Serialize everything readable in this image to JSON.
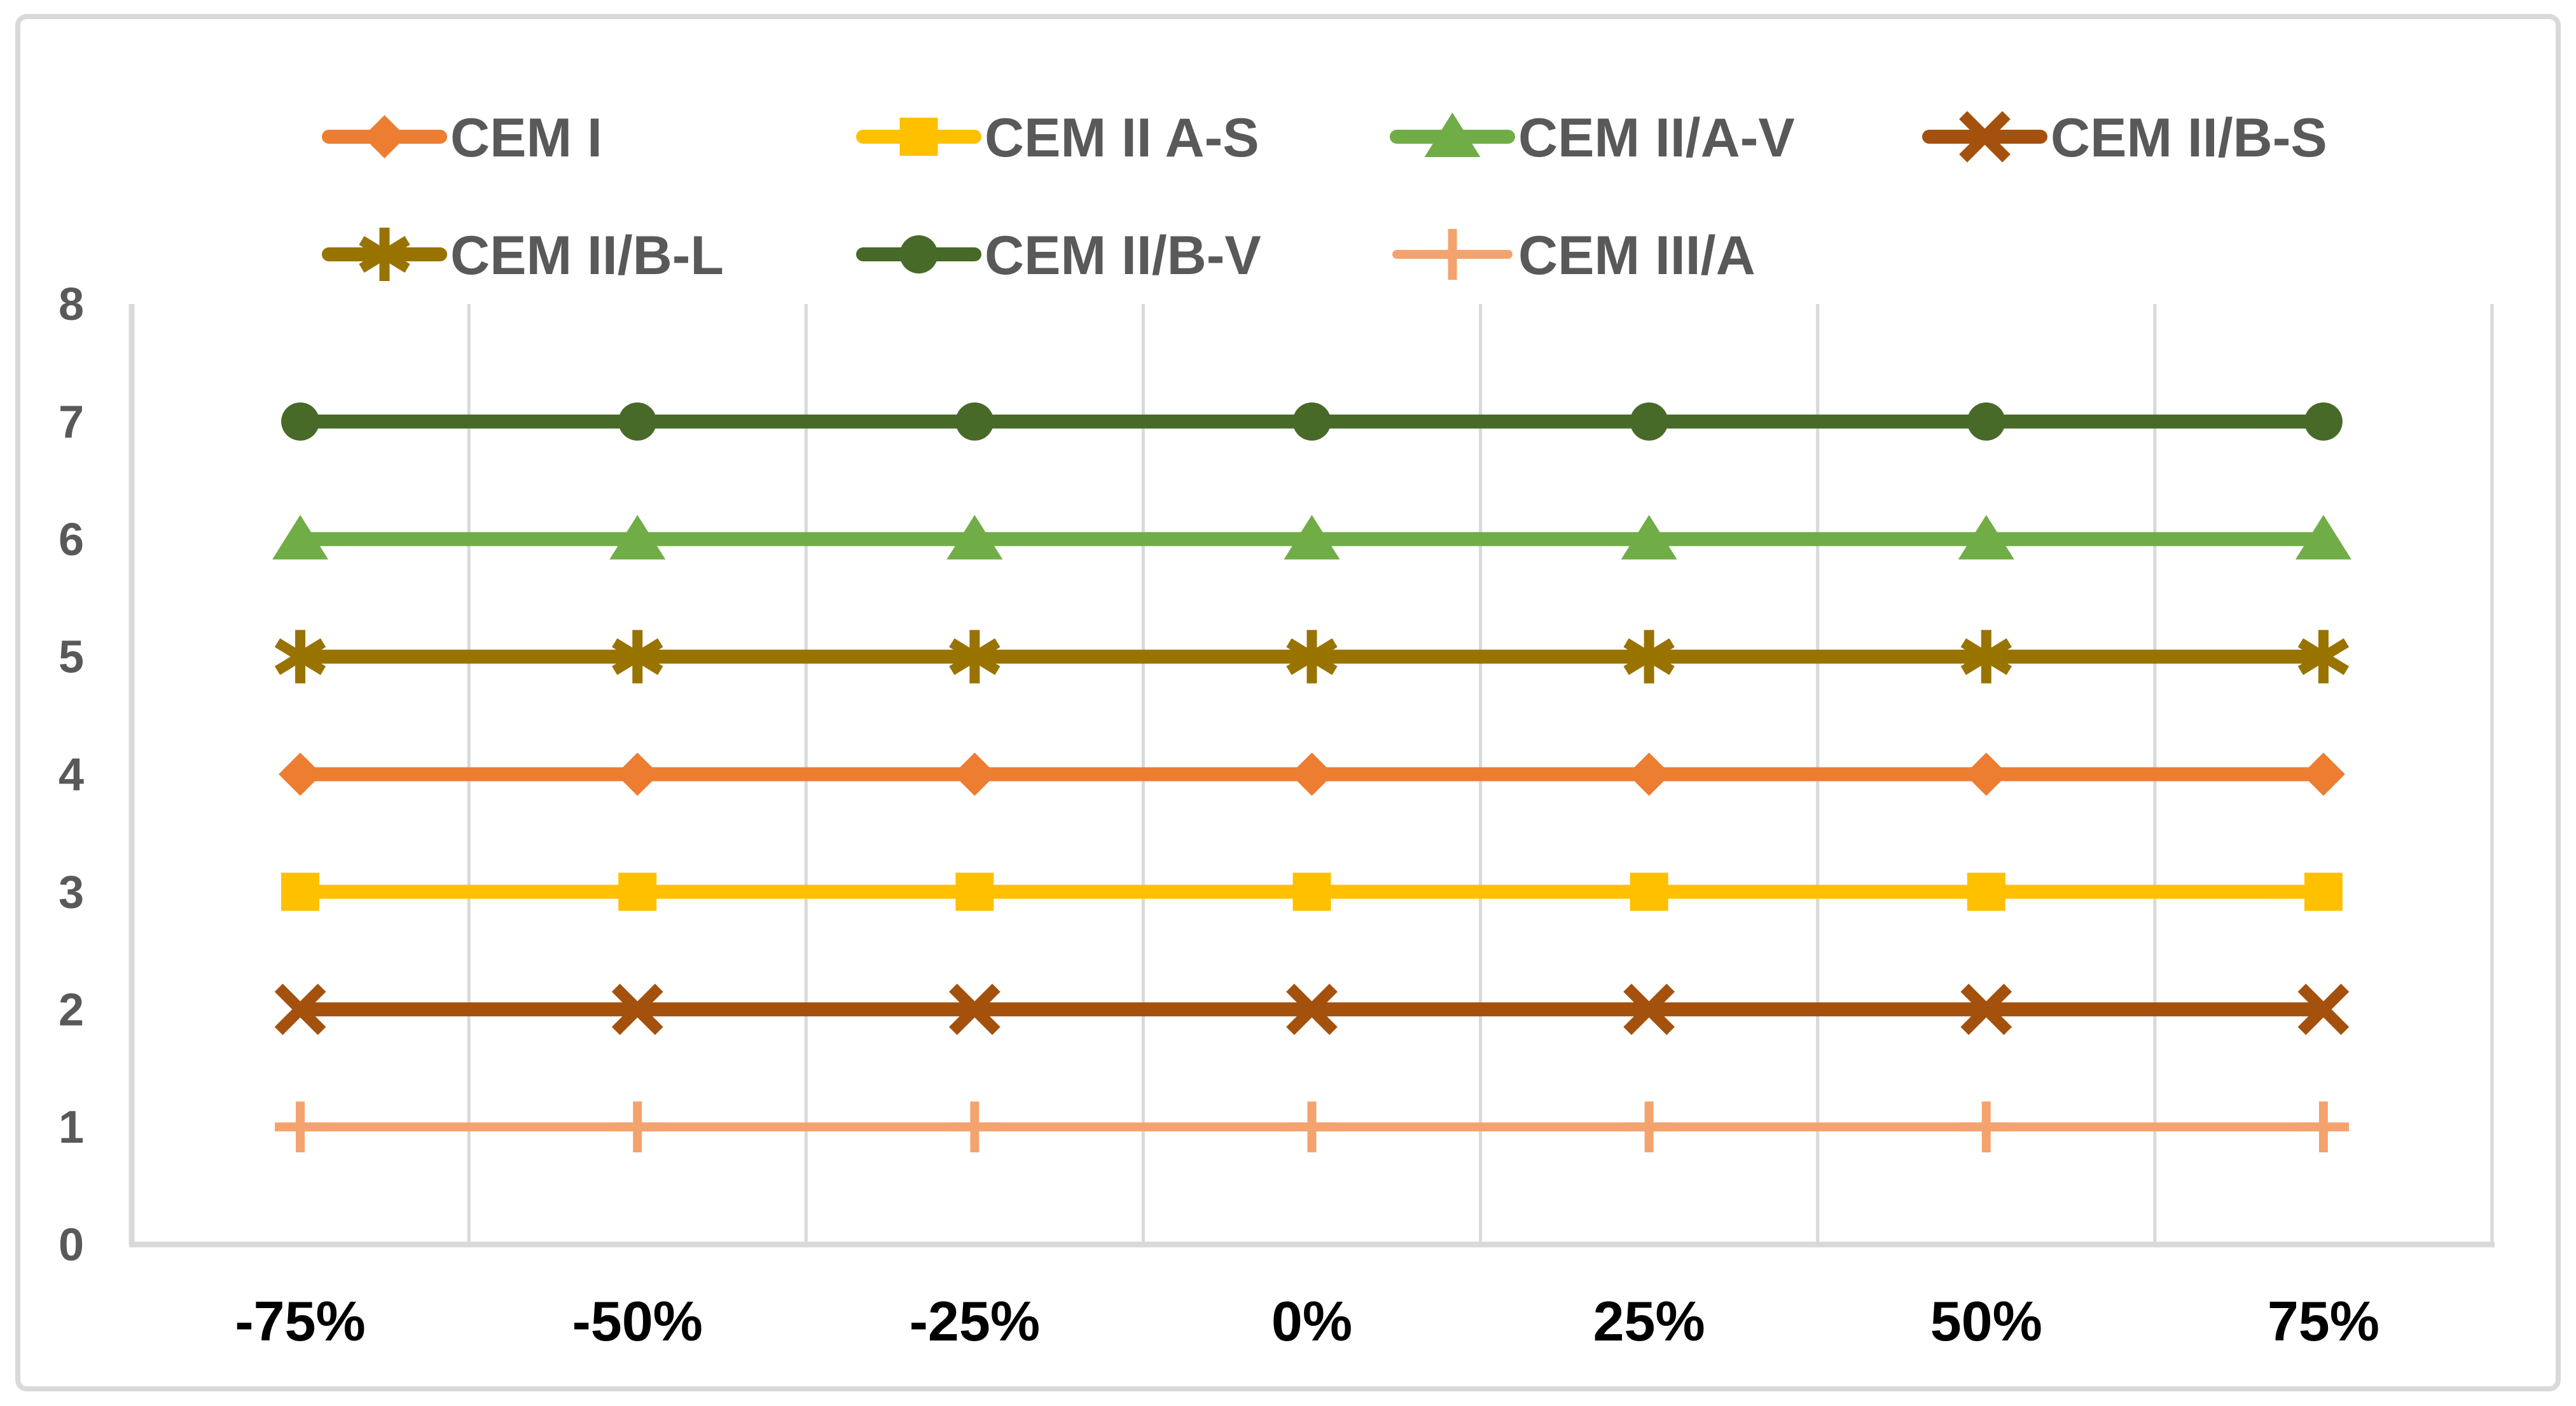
{
  "frame": {
    "background": "#FFFFFF",
    "border_color": "#D9D9D9"
  },
  "axes": {
    "gridline_color": "#D9D9D9",
    "axis_line_color": "#D9D9D9",
    "x": {
      "tick_labels": [
        "-75%",
        "-50%",
        "-25%",
        "0%",
        "25%",
        "50%",
        "75%"
      ],
      "label_color": "#000000"
    },
    "y": {
      "min": 0,
      "max": 8,
      "tick_labels": [
        "0",
        "1",
        "2",
        "3",
        "4",
        "5",
        "6",
        "7",
        "8"
      ],
      "label_color": "#595959"
    }
  },
  "legend": {
    "text_color": "#595959",
    "rows": [
      [
        "CEM I",
        "CEM II A-S",
        "CEM II/A-V",
        "CEM II/B-S"
      ],
      [
        "CEM II/B-L",
        "CEM II/B-V",
        "CEM III/A"
      ]
    ]
  },
  "chart_data": {
    "type": "line",
    "title": "",
    "xlabel": "",
    "ylabel": "",
    "categories": [
      "-75%",
      "-50%",
      "-25%",
      "0%",
      "25%",
      "50%",
      "75%"
    ],
    "ylim": [
      0,
      8
    ],
    "y_ticks": [
      0,
      1,
      2,
      3,
      4,
      5,
      6,
      7,
      8
    ],
    "grid": "vertical-only",
    "legend_position": "top",
    "series": [
      {
        "name": "CEM I",
        "values": [
          4,
          4,
          4,
          4,
          4,
          4,
          4
        ],
        "color": "#ED7D31",
        "marker": "diamond",
        "weight": "normal"
      },
      {
        "name": "CEM II A-S",
        "values": [
          3,
          3,
          3,
          3,
          3,
          3,
          3
        ],
        "color": "#FFC000",
        "marker": "square",
        "weight": "normal"
      },
      {
        "name": "CEM II/A-V",
        "values": [
          6,
          6,
          6,
          6,
          6,
          6,
          6
        ],
        "color": "#70AD47",
        "marker": "triangle",
        "weight": "normal"
      },
      {
        "name": "CEM II/B-S",
        "values": [
          2,
          2,
          2,
          2,
          2,
          2,
          2
        ],
        "color": "#A4510E",
        "marker": "x",
        "weight": "normal"
      },
      {
        "name": "CEM II/B-L",
        "values": [
          5,
          5,
          5,
          5,
          5,
          5,
          5
        ],
        "color": "#997300",
        "marker": "asterisk",
        "weight": "normal"
      },
      {
        "name": "CEM II/B-V",
        "values": [
          7,
          7,
          7,
          7,
          7,
          7,
          7
        ],
        "color": "#486A28",
        "marker": "circle",
        "weight": "normal"
      },
      {
        "name": "CEM III/A",
        "values": [
          1,
          1,
          1,
          1,
          1,
          1,
          1
        ],
        "color": "#F4A36E",
        "marker": "plus",
        "weight": "thin"
      }
    ]
  }
}
